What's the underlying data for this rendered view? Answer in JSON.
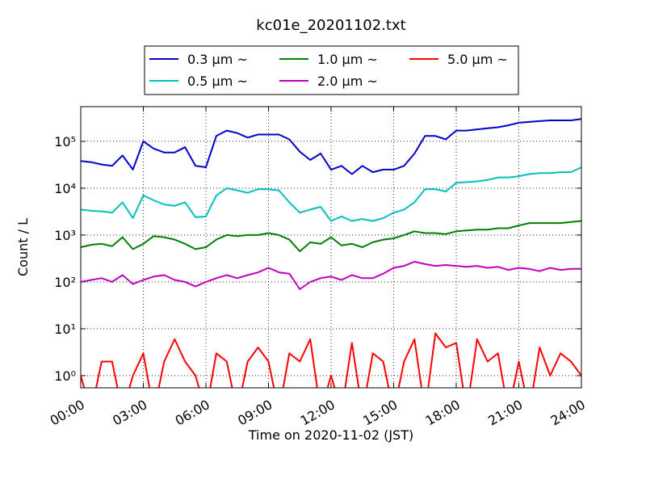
{
  "chart_data": {
    "type": "line",
    "title": "kc01e_20201102.txt",
    "xlabel": "Time on 2020-11-02 (JST)",
    "ylabel": "Count / L",
    "x": [
      0,
      0.5,
      1,
      1.5,
      2,
      2.5,
      3,
      3.5,
      4,
      4.5,
      5,
      5.5,
      6,
      6.5,
      7,
      7.5,
      8,
      8.5,
      9,
      9.5,
      10,
      10.5,
      11,
      11.5,
      12,
      12.5,
      13,
      13.5,
      14,
      14.5,
      15,
      15.5,
      16,
      16.5,
      17,
      17.5,
      18,
      18.5,
      19,
      19.5,
      20,
      20.5,
      21,
      21.5,
      22,
      22.5,
      23,
      23.5,
      24
    ],
    "xlim": [
      0,
      24
    ],
    "xticks": [
      {
        "value": 0,
        "label": "00:00"
      },
      {
        "value": 3,
        "label": "03:00"
      },
      {
        "value": 6,
        "label": "06:00"
      },
      {
        "value": 9,
        "label": "09:00"
      },
      {
        "value": 12,
        "label": "12:00"
      },
      {
        "value": 15,
        "label": "15:00"
      },
      {
        "value": 18,
        "label": "18:00"
      },
      {
        "value": 21,
        "label": "21:00"
      },
      {
        "value": 24,
        "label": "24:00"
      }
    ],
    "ylim": [
      0.55,
      550000
    ],
    "yscale": "log",
    "yticks": [
      {
        "value": 1,
        "label": "10⁰"
      },
      {
        "value": 10,
        "label": "10¹"
      },
      {
        "value": 100,
        "label": "10²"
      },
      {
        "value": 1000,
        "label": "10³"
      },
      {
        "value": 10000,
        "label": "10⁴"
      },
      {
        "value": 100000,
        "label": "10⁵"
      }
    ],
    "grid": true,
    "legend": "top",
    "series": [
      {
        "name": "0.3 μm ~",
        "color": "#0000cc",
        "values": [
          38000,
          36000,
          32000,
          30000,
          50000,
          25000,
          100000,
          70000,
          58000,
          58000,
          75000,
          30000,
          28000,
          130000,
          170000,
          150000,
          120000,
          140000,
          140000,
          140000,
          110000,
          60000,
          40000,
          55000,
          25000,
          30000,
          20000,
          30000,
          22000,
          25000,
          25000,
          30000,
          55000,
          130000,
          130000,
          110000,
          170000,
          170000,
          180000,
          190000,
          200000,
          220000,
          250000,
          260000,
          270000,
          280000,
          280000,
          280000,
          300000
        ]
      },
      {
        "name": "0.5 μm ~",
        "color": "#00bfbf",
        "values": [
          3500,
          3300,
          3200,
          3000,
          5000,
          2300,
          7000,
          5500,
          4500,
          4200,
          5000,
          2400,
          2500,
          7000,
          10000,
          9000,
          8000,
          9500,
          9500,
          9000,
          5000,
          3000,
          3500,
          4000,
          2000,
          2500,
          2000,
          2200,
          2000,
          2300,
          3000,
          3500,
          5000,
          9500,
          9500,
          8500,
          13000,
          13500,
          14000,
          15000,
          17000,
          17000,
          18000,
          20000,
          21000,
          21000,
          22000,
          22000,
          28000
        ]
      },
      {
        "name": "1.0 μm ~",
        "color": "#008000",
        "values": [
          550,
          620,
          650,
          580,
          900,
          500,
          650,
          950,
          900,
          800,
          650,
          500,
          550,
          800,
          1000,
          950,
          1000,
          1000,
          1100,
          1000,
          800,
          450,
          700,
          650,
          900,
          600,
          650,
          550,
          700,
          800,
          850,
          1000,
          1200,
          1100,
          1100,
          1050,
          1200,
          1250,
          1300,
          1300,
          1400,
          1400,
          1600,
          1800,
          1800,
          1800,
          1800,
          1900,
          2000
        ]
      },
      {
        "name": "2.0 μm ~",
        "color": "#bf00bf",
        "values": [
          100,
          110,
          120,
          100,
          140,
          90,
          110,
          130,
          140,
          110,
          100,
          80,
          100,
          120,
          140,
          120,
          140,
          160,
          200,
          160,
          150,
          70,
          100,
          120,
          130,
          110,
          140,
          120,
          120,
          150,
          200,
          220,
          270,
          240,
          220,
          230,
          220,
          210,
          220,
          200,
          210,
          180,
          200,
          190,
          170,
          200,
          180,
          190,
          190
        ]
      },
      {
        "name": "5.0 μm ~",
        "color": "#ff0000",
        "values": [
          1,
          0,
          2,
          2,
          0,
          1,
          3,
          0,
          2,
          6,
          2,
          1,
          0,
          3,
          2,
          0,
          2,
          4,
          2,
          0,
          3,
          2,
          6,
          0,
          1,
          0,
          5,
          0,
          3,
          2,
          0,
          2,
          6,
          0,
          8,
          4,
          5,
          0,
          6,
          2,
          3,
          0,
          2,
          0,
          4,
          1,
          3,
          2,
          1
        ]
      }
    ]
  }
}
